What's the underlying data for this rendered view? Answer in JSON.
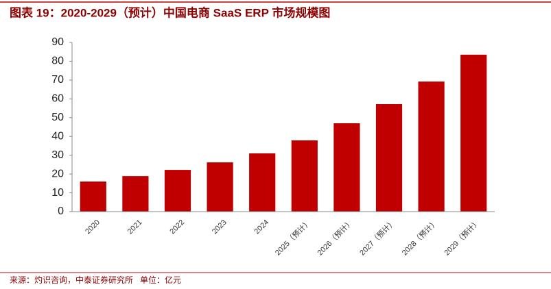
{
  "chart_data": {
    "type": "bar",
    "title": "图表 19：2020-2029（预计）中国电商 SaaS ERP 市场规模图",
    "source": "来源：灼识咨询，中泰证券研究所   单位：亿元",
    "categories": [
      "2020",
      "2021",
      "2022",
      "2023",
      "2024",
      "2025（预计）",
      "2026（预计）",
      "2027（预计）",
      "2028（预计）",
      "2029（预计）"
    ],
    "values": [
      16.0,
      18.9,
      22.2,
      26.2,
      31.0,
      37.9,
      47.0,
      57.2,
      69.2,
      83.5
    ],
    "color": "#c00000",
    "ylim": [
      0,
      90
    ],
    "yticks": [
      0,
      10,
      20,
      30,
      40,
      50,
      60,
      70,
      80,
      90
    ],
    "grid": false
  }
}
